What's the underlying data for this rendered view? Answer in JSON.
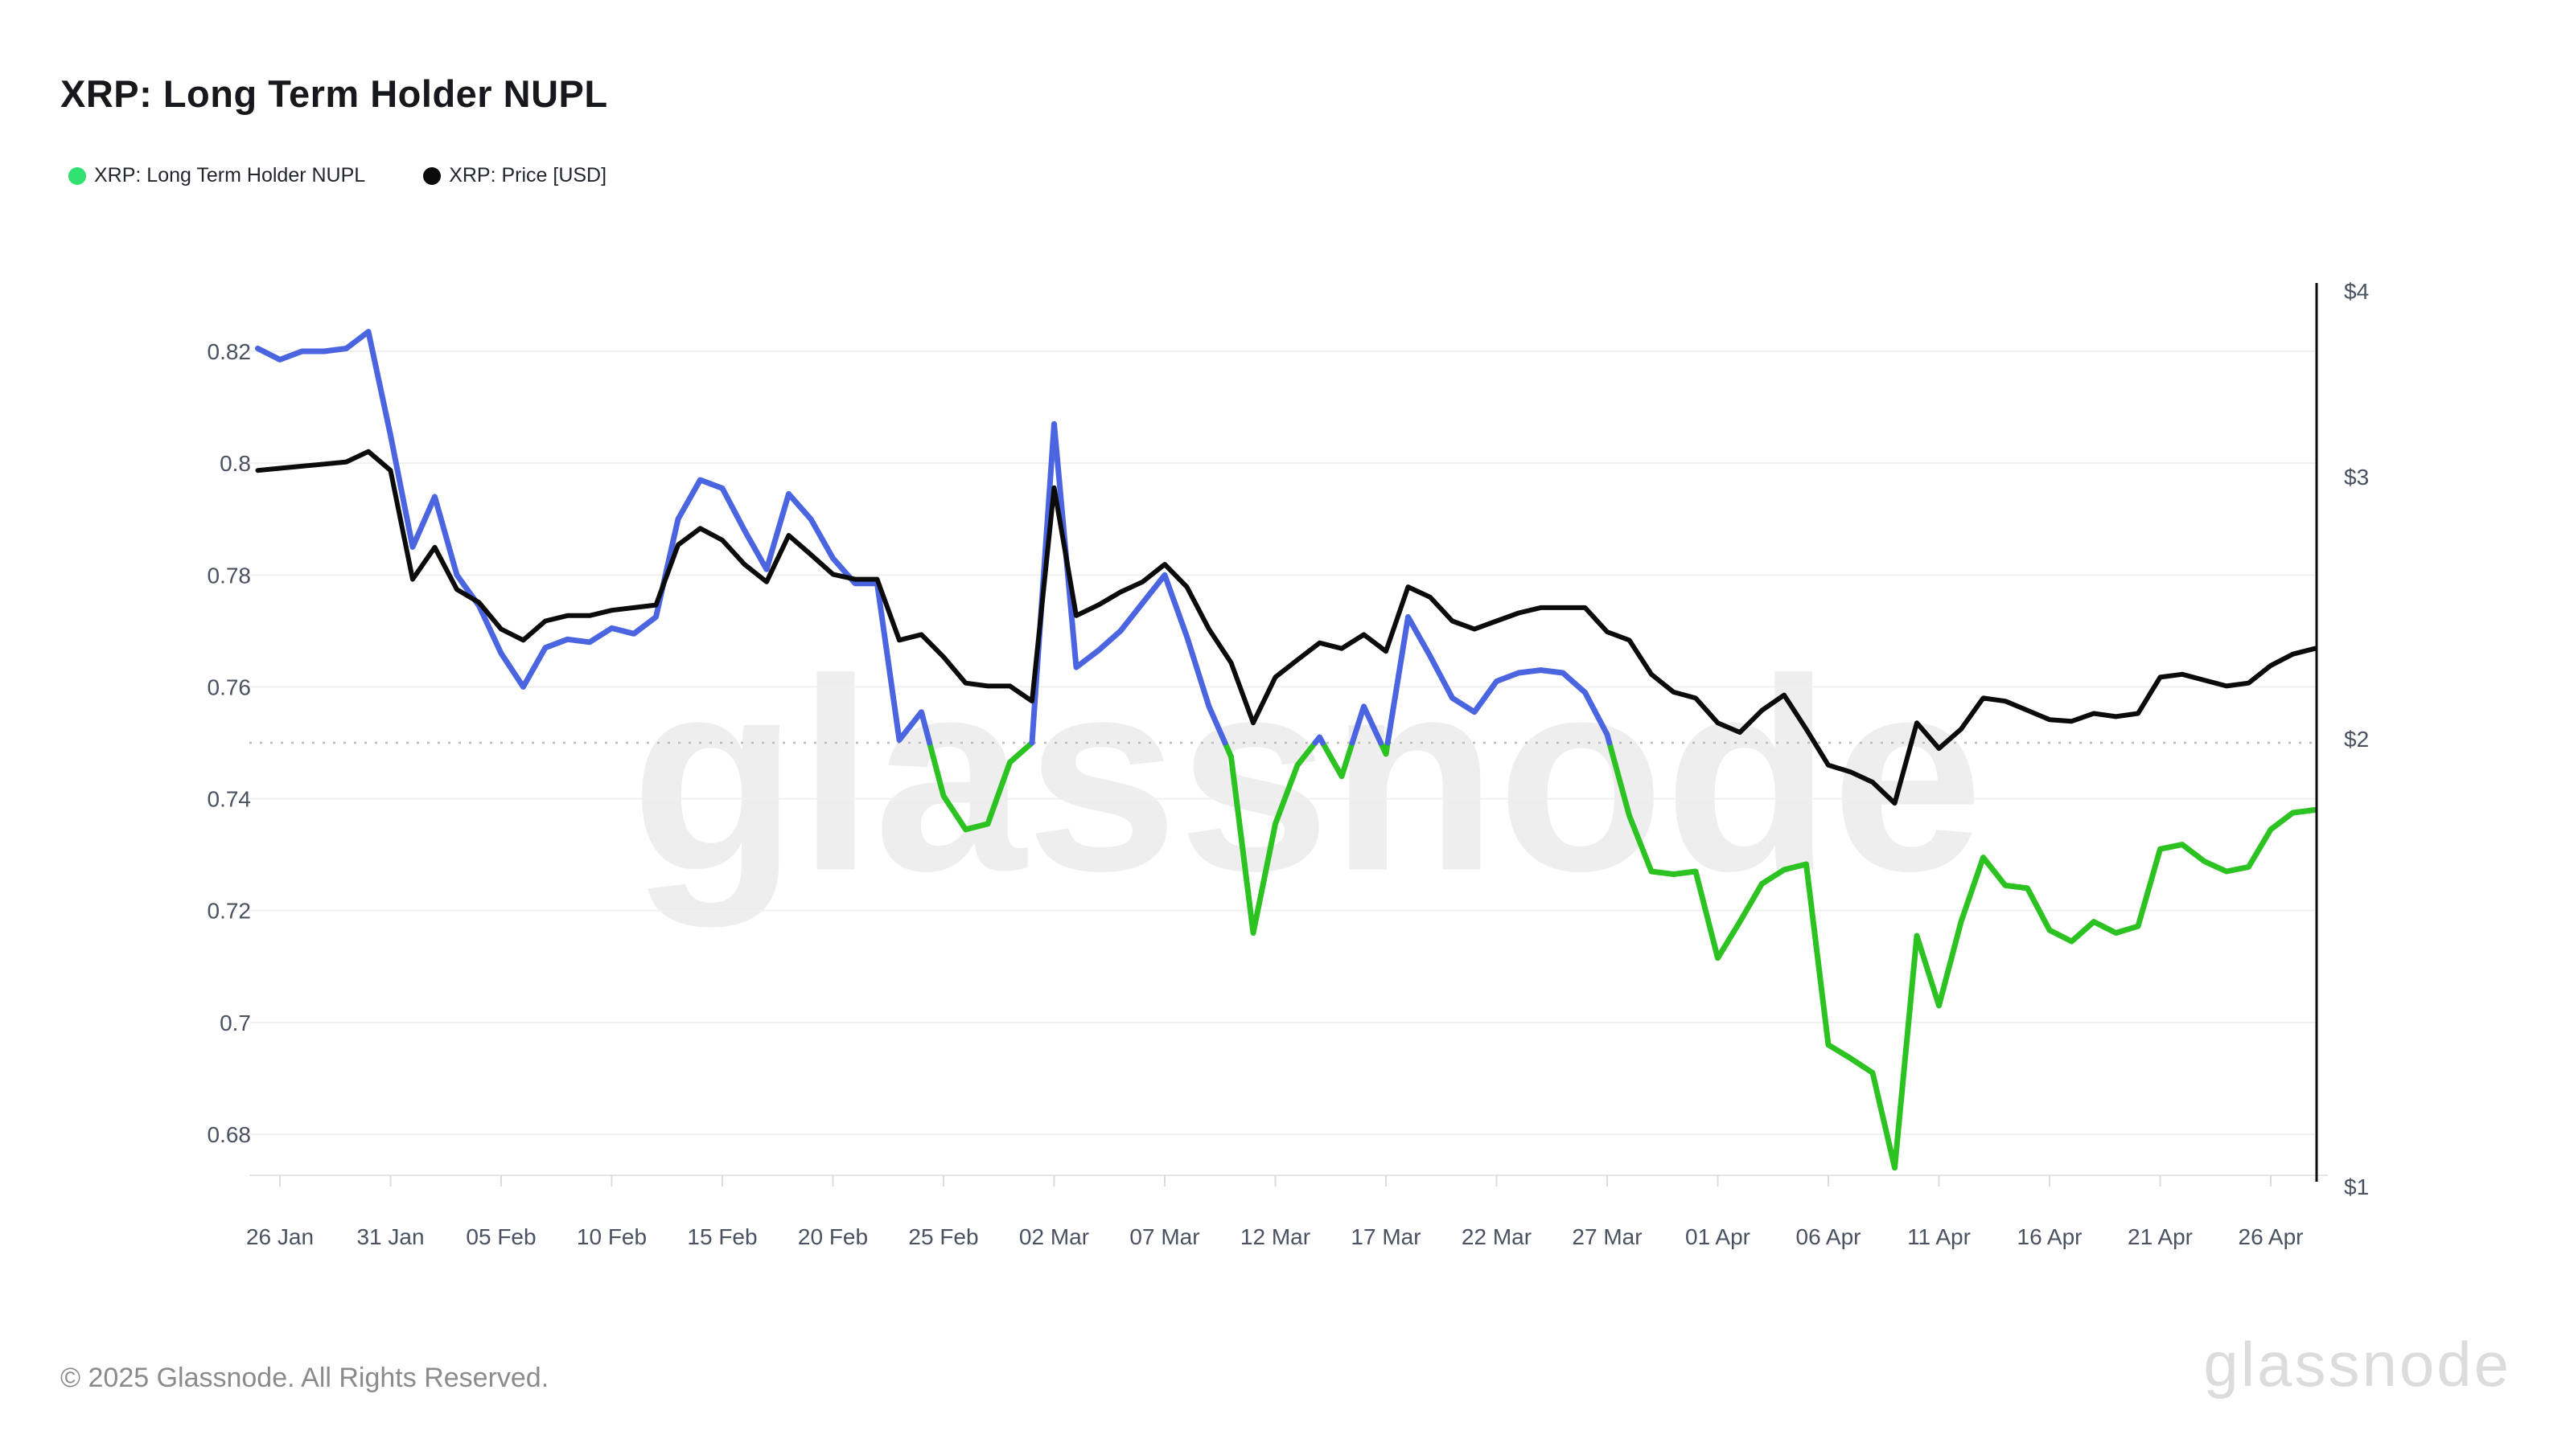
{
  "header": {
    "title": "XRP: Long Term Holder NUPL"
  },
  "legend": [
    {
      "label": "XRP: Long Term Holder NUPL",
      "color": "#30e070"
    },
    {
      "label": "XRP: Price [USD]",
      "color": "#0b0b0b"
    }
  ],
  "watermark": "glassnode",
  "footer": {
    "copyright": "© 2025 Glassnode. All Rights Reserved.",
    "brand": "glassnode"
  },
  "colors": {
    "nupl_blue": "#4b64e0",
    "nupl_green": "#2cc322",
    "price_black": "#0b0b0b",
    "grid": "#f0f0f0",
    "threshold_dotted": "#bbbbbb",
    "axis_text": "#4a5160",
    "bottom_border": "#e6e6e6",
    "tick_mark": "#dcdcdc",
    "right_axis_line": "#0b0b0b"
  },
  "chart_data": {
    "type": "line",
    "title": "XRP: Long Term Holder NUPL",
    "x": [
      "25 Jan",
      "26 Jan",
      "27 Jan",
      "28 Jan",
      "29 Jan",
      "30 Jan",
      "31 Jan",
      "01 Feb",
      "02 Feb",
      "03 Feb",
      "04 Feb",
      "05 Feb",
      "06 Feb",
      "07 Feb",
      "08 Feb",
      "09 Feb",
      "10 Feb",
      "11 Feb",
      "12 Feb",
      "13 Feb",
      "14 Feb",
      "15 Feb",
      "16 Feb",
      "17 Feb",
      "18 Feb",
      "19 Feb",
      "20 Feb",
      "21 Feb",
      "22 Feb",
      "23 Feb",
      "24 Feb",
      "25 Feb",
      "26 Feb",
      "27 Feb",
      "28 Feb",
      "01 Mar",
      "02 Mar",
      "03 Mar",
      "04 Mar",
      "05 Mar",
      "06 Mar",
      "07 Mar",
      "08 Mar",
      "09 Mar",
      "10 Mar",
      "11 Mar",
      "12 Mar",
      "13 Mar",
      "14 Mar",
      "15 Mar",
      "16 Mar",
      "17 Mar",
      "18 Mar",
      "19 Mar",
      "20 Mar",
      "21 Mar",
      "22 Mar",
      "23 Mar",
      "24 Mar",
      "25 Mar",
      "26 Mar",
      "27 Mar",
      "28 Mar",
      "29 Mar",
      "30 Mar",
      "31 Mar",
      "01 Apr",
      "02 Apr",
      "03 Apr",
      "04 Apr",
      "05 Apr",
      "06 Apr",
      "07 Apr",
      "08 Apr",
      "09 Apr",
      "10 Apr",
      "11 Apr",
      "12 Apr",
      "13 Apr",
      "14 Apr",
      "15 Apr",
      "16 Apr",
      "17 Apr",
      "18 Apr",
      "19 Apr",
      "20 Apr",
      "21 Apr",
      "22 Apr",
      "23 Apr",
      "24 Apr",
      "25 Apr",
      "26 Apr",
      "27 Apr",
      "28 Apr"
    ],
    "x_tick_labels": [
      "26 Jan",
      "31 Jan",
      "05 Feb",
      "10 Feb",
      "15 Feb",
      "20 Feb",
      "25 Feb",
      "02 Mar",
      "07 Mar",
      "12 Mar",
      "17 Mar",
      "22 Mar",
      "27 Mar",
      "01 Apr",
      "06 Apr",
      "11 Apr",
      "16 Apr",
      "21 Apr",
      "26 Apr"
    ],
    "series": [
      {
        "name": "XRP: Long Term Holder NUPL",
        "axis": "left",
        "threshold": 0.75,
        "color_above_threshold": "#4b64e0",
        "color_below_threshold": "#2cc322",
        "values": [
          0.8205,
          0.8185,
          0.82,
          0.82,
          0.8205,
          0.8235,
          0.805,
          0.785,
          0.794,
          0.78,
          0.7745,
          0.766,
          0.76,
          0.767,
          0.7685,
          0.768,
          0.7705,
          0.7695,
          0.7725,
          0.79,
          0.797,
          0.7955,
          0.788,
          0.781,
          0.7945,
          0.79,
          0.783,
          0.7785,
          0.7785,
          0.7505,
          0.7555,
          0.7405,
          0.7345,
          0.7355,
          0.7465,
          0.75,
          0.807,
          0.7635,
          0.7665,
          0.77,
          0.775,
          0.78,
          0.769,
          0.7565,
          0.7475,
          0.716,
          0.7355,
          0.746,
          0.751,
          0.744,
          0.7565,
          0.748,
          0.7725,
          0.7655,
          0.758,
          0.7555,
          0.761,
          0.7625,
          0.763,
          0.7625,
          0.759,
          0.7515,
          0.737,
          0.727,
          0.7265,
          0.727,
          0.7115,
          0.718,
          0.7248,
          0.7273,
          0.7283,
          0.696,
          0.6936,
          0.691,
          0.674,
          0.7155,
          0.703,
          0.718,
          0.7295,
          0.7245,
          0.724,
          0.7165,
          0.7145,
          0.718,
          0.716,
          0.7172,
          0.731,
          0.7318,
          0.7288,
          0.727,
          0.7278,
          0.7345,
          0.7375,
          0.738
        ]
      },
      {
        "name": "XRP: Price [USD]",
        "axis": "right",
        "color": "#0b0b0b",
        "values": [
          3.03,
          3.04,
          3.05,
          3.06,
          3.07,
          3.12,
          3.03,
          2.56,
          2.69,
          2.52,
          2.47,
          2.37,
          2.33,
          2.4,
          2.42,
          2.42,
          2.44,
          2.45,
          2.46,
          2.7,
          2.77,
          2.72,
          2.62,
          2.55,
          2.74,
          2.66,
          2.58,
          2.56,
          2.56,
          2.33,
          2.35,
          2.27,
          2.18,
          2.17,
          2.17,
          2.12,
          2.95,
          2.42,
          2.46,
          2.51,
          2.55,
          2.62,
          2.53,
          2.37,
          2.25,
          2.05,
          2.2,
          2.26,
          2.32,
          2.3,
          2.35,
          2.29,
          2.53,
          2.49,
          2.4,
          2.37,
          2.4,
          2.43,
          2.45,
          2.45,
          2.45,
          2.36,
          2.33,
          2.21,
          2.15,
          2.13,
          2.05,
          2.02,
          2.09,
          2.14,
          2.03,
          1.92,
          1.9,
          1.87,
          1.81,
          2.05,
          1.97,
          2.03,
          2.13,
          2.12,
          2.09,
          2.06,
          2.055,
          2.08,
          2.07,
          2.08,
          2.2,
          2.21,
          2.19,
          2.17,
          2.18,
          2.24,
          2.28,
          2.3
        ]
      }
    ],
    "y_left": {
      "tick_labels": [
        "0.82",
        "0.8",
        "0.78",
        "0.76",
        "0.74",
        "0.72",
        "0.7",
        "0.68"
      ],
      "tick_values": [
        0.82,
        0.8,
        0.78,
        0.76,
        0.74,
        0.72,
        0.7,
        0.68
      ],
      "scale": "linear",
      "grid": true,
      "threshold_line": {
        "value": 0.75,
        "style": "dotted"
      }
    },
    "y_right": {
      "tick_labels": [
        "$4",
        "$3",
        "$2",
        "$1"
      ],
      "tick_values": [
        4,
        3,
        2,
        1
      ],
      "scale": "log",
      "domain": [
        1,
        4
      ],
      "grid": false
    },
    "legend_position": "top-left"
  }
}
